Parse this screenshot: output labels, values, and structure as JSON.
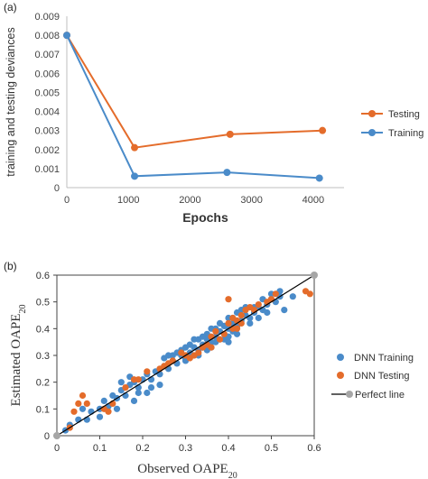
{
  "chart_data": [
    {
      "type": "line",
      "panel_label": "(a)",
      "xlabel": "Epochs",
      "ylabel": "training and testing deviances",
      "xlim": [
        0,
        4500
      ],
      "ylim": [
        0,
        0.009
      ],
      "xticks": [
        0,
        1000,
        2000,
        3000,
        4000
      ],
      "yticks": [
        0,
        0.001,
        0.002,
        0.003,
        0.004,
        0.005,
        0.006,
        0.007,
        0.008,
        0.009
      ],
      "xtick_labels": [
        "0",
        "1000",
        "2000",
        "3000",
        "4000"
      ],
      "ytick_labels": [
        "0",
        "0.001",
        "0.002",
        "0.003",
        "0.004",
        "0.005",
        "0.006",
        "0.007",
        "0.008",
        "0.009"
      ],
      "grid": false,
      "legend_position": "right",
      "series": [
        {
          "name": "Testing",
          "color": "#E46C2B",
          "x": [
            0,
            1100,
            2650,
            4150
          ],
          "y": [
            0.008,
            0.0021,
            0.0028,
            0.003
          ]
        },
        {
          "name": "Training",
          "color": "#4A8BC9",
          "x": [
            0,
            1100,
            2600,
            4100
          ],
          "y": [
            0.008,
            0.0006,
            0.0008,
            0.0005
          ]
        }
      ]
    },
    {
      "type": "scatter",
      "panel_label": "(b)",
      "xlabel": "Observed OAPE",
      "xlabel_sub": "20",
      "ylabel": "Estimated OAPE",
      "ylabel_sub": "20",
      "xlim": [
        0,
        0.6
      ],
      "ylim": [
        0,
        0.6
      ],
      "xticks": [
        0,
        0.1,
        0.2,
        0.3,
        0.4,
        0.5,
        0.6
      ],
      "yticks": [
        0,
        0.1,
        0.2,
        0.3,
        0.4,
        0.5,
        0.6
      ],
      "xtick_labels": [
        "0",
        "0.1",
        "0.2",
        "0.3",
        "0.4",
        "0.5",
        "0.6"
      ],
      "ytick_labels": [
        "0",
        "0.1",
        "0.2",
        "0.3",
        "0.4",
        "0.5",
        "0.6"
      ],
      "grid": false,
      "legend_position": "right",
      "series": [
        {
          "name": "DNN Training",
          "color": "#4A8BC9",
          "points": [
            [
              0.02,
              0.02
            ],
            [
              0.03,
              0.04
            ],
            [
              0.05,
              0.06
            ],
            [
              0.07,
              0.06
            ],
            [
              0.08,
              0.09
            ],
            [
              0.1,
              0.1
            ],
            [
              0.11,
              0.13
            ],
            [
              0.12,
              0.11
            ],
            [
              0.13,
              0.15
            ],
            [
              0.14,
              0.14
            ],
            [
              0.15,
              0.17
            ],
            [
              0.16,
              0.15
            ],
            [
              0.17,
              0.19
            ],
            [
              0.18,
              0.2
            ],
            [
              0.19,
              0.18
            ],
            [
              0.2,
              0.21
            ],
            [
              0.21,
              0.23
            ],
            [
              0.22,
              0.21
            ],
            [
              0.23,
              0.24
            ],
            [
              0.24,
              0.23
            ],
            [
              0.25,
              0.26
            ],
            [
              0.26,
              0.25
            ],
            [
              0.27,
              0.28
            ],
            [
              0.28,
              0.27
            ],
            [
              0.29,
              0.3
            ],
            [
              0.3,
              0.29
            ],
            [
              0.31,
              0.31
            ],
            [
              0.32,
              0.33
            ],
            [
              0.33,
              0.32
            ],
            [
              0.34,
              0.34
            ],
            [
              0.35,
              0.36
            ],
            [
              0.36,
              0.35
            ],
            [
              0.37,
              0.37
            ],
            [
              0.38,
              0.39
            ],
            [
              0.39,
              0.38
            ],
            [
              0.4,
              0.4
            ],
            [
              0.41,
              0.42
            ],
            [
              0.42,
              0.41
            ],
            [
              0.43,
              0.43
            ],
            [
              0.44,
              0.45
            ],
            [
              0.45,
              0.44
            ],
            [
              0.46,
              0.46
            ],
            [
              0.47,
              0.48
            ],
            [
              0.48,
              0.47
            ],
            [
              0.49,
              0.49
            ],
            [
              0.5,
              0.51
            ],
            [
              0.51,
              0.5
            ],
            [
              0.52,
              0.52
            ],
            [
              0.53,
              0.47
            ],
            [
              0.55,
              0.52
            ],
            [
              0.3,
              0.28
            ],
            [
              0.32,
              0.3
            ],
            [
              0.34,
              0.33
            ],
            [
              0.36,
              0.33
            ],
            [
              0.37,
              0.35
            ],
            [
              0.38,
              0.36
            ],
            [
              0.39,
              0.36
            ],
            [
              0.4,
              0.37
            ],
            [
              0.41,
              0.39
            ],
            [
              0.42,
              0.38
            ],
            [
              0.33,
              0.3
            ],
            [
              0.35,
              0.32
            ],
            [
              0.4,
              0.35
            ],
            [
              0.45,
              0.42
            ],
            [
              0.47,
              0.44
            ],
            [
              0.49,
              0.46
            ],
            [
              0.27,
              0.3
            ],
            [
              0.29,
              0.32
            ],
            [
              0.31,
              0.34
            ],
            [
              0.25,
              0.29
            ],
            [
              0.26,
              0.3
            ],
            [
              0.28,
              0.31
            ],
            [
              0.3,
              0.33
            ],
            [
              0.32,
              0.36
            ],
            [
              0.34,
              0.37
            ],
            [
              0.36,
              0.4
            ],
            [
              0.38,
              0.42
            ],
            [
              0.4,
              0.44
            ],
            [
              0.42,
              0.46
            ],
            [
              0.44,
              0.48
            ],
            [
              0.18,
              0.13
            ],
            [
              0.21,
              0.16
            ],
            [
              0.24,
              0.19
            ],
            [
              0.22,
              0.18
            ],
            [
              0.19,
              0.16
            ],
            [
              0.14,
              0.1
            ],
            [
              0.1,
              0.07
            ],
            [
              0.06,
              0.1
            ],
            [
              0.15,
              0.2
            ],
            [
              0.17,
              0.22
            ],
            [
              0.33,
              0.36
            ],
            [
              0.35,
              0.38
            ],
            [
              0.37,
              0.4
            ],
            [
              0.39,
              0.41
            ],
            [
              0.41,
              0.44
            ],
            [
              0.43,
              0.47
            ],
            [
              0.46,
              0.48
            ],
            [
              0.48,
              0.51
            ],
            [
              0.5,
              0.53
            ],
            [
              0.52,
              0.54
            ]
          ]
        },
        {
          "name": "DNN Testing",
          "color": "#E46C2B",
          "points": [
            [
              0.03,
              0.03
            ],
            [
              0.04,
              0.09
            ],
            [
              0.05,
              0.12
            ],
            [
              0.06,
              0.15
            ],
            [
              0.07,
              0.12
            ],
            [
              0.11,
              0.1
            ],
            [
              0.12,
              0.09
            ],
            [
              0.13,
              0.12
            ],
            [
              0.16,
              0.18
            ],
            [
              0.18,
              0.21
            ],
            [
              0.19,
              0.21
            ],
            [
              0.21,
              0.24
            ],
            [
              0.24,
              0.25
            ],
            [
              0.25,
              0.26
            ],
            [
              0.26,
              0.27
            ],
            [
              0.27,
              0.28
            ],
            [
              0.3,
              0.3
            ],
            [
              0.31,
              0.29
            ],
            [
              0.33,
              0.31
            ],
            [
              0.34,
              0.33
            ],
            [
              0.35,
              0.34
            ],
            [
              0.36,
              0.37
            ],
            [
              0.38,
              0.36
            ],
            [
              0.39,
              0.38
            ],
            [
              0.4,
              0.42
            ],
            [
              0.41,
              0.44
            ],
            [
              0.42,
              0.43
            ],
            [
              0.43,
              0.45
            ],
            [
              0.44,
              0.47
            ],
            [
              0.46,
              0.47
            ],
            [
              0.47,
              0.49
            ],
            [
              0.49,
              0.5
            ],
            [
              0.5,
              0.51
            ],
            [
              0.4,
              0.51
            ],
            [
              0.45,
              0.48
            ],
            [
              0.41,
              0.4
            ],
            [
              0.37,
              0.39
            ],
            [
              0.42,
              0.4
            ],
            [
              0.58,
              0.54
            ],
            [
              0.59,
              0.53
            ],
            [
              0.32,
              0.3
            ],
            [
              0.29,
              0.31
            ],
            [
              0.43,
              0.42
            ],
            [
              0.36,
              0.33
            ],
            [
              0.51,
              0.53
            ]
          ]
        },
        {
          "name": "Perfect line",
          "color": "#000000",
          "marker_color": "#A6A6A6",
          "x": [
            0,
            0.6
          ],
          "y": [
            0,
            0.6
          ]
        }
      ]
    }
  ]
}
